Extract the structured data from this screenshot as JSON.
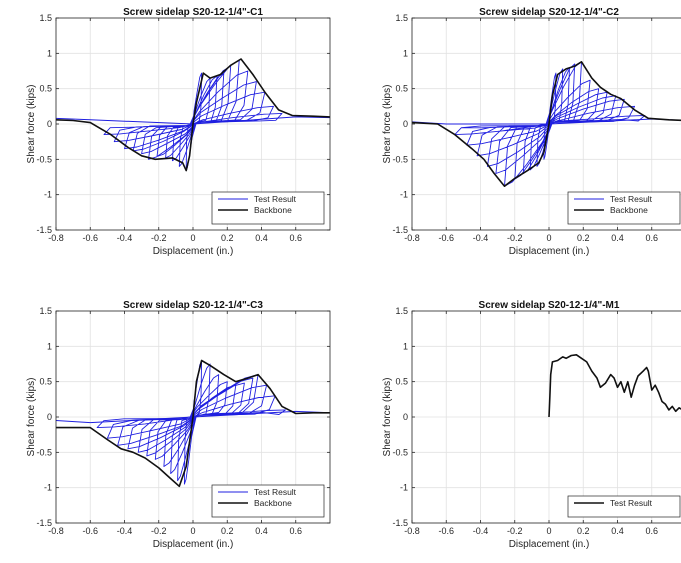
{
  "chart_data": [
    {
      "type": "line",
      "title": "Screw sidelap S20-12-1/4\"-C1",
      "xlabel": "Displacement (in.)",
      "ylabel": "Shear force (kips)",
      "xlim": [
        -0.8,
        0.8
      ],
      "ylim": [
        -1.5,
        1.5
      ],
      "xticks": [
        -0.8,
        -0.6,
        -0.4,
        -0.2,
        0,
        0.2,
        0.4,
        0.6
      ],
      "xtick_labels": [
        "-0.8",
        "-0.6",
        "-0.4",
        "-0.2",
        "0",
        "0.2",
        "0.4",
        "0.6"
      ],
      "yticks": [
        -1.5,
        -1,
        -0.5,
        0,
        0.5,
        1,
        1.5
      ],
      "ytick_labels": [
        "-1.5",
        "-1",
        "-0.5",
        "0",
        "0.5",
        "1",
        "1.5"
      ],
      "grid": true,
      "legend_position": "bottom-right",
      "series": [
        {
          "name": "Test Result",
          "color": "#1f1fe0",
          "kind": "hysteresis",
          "pos_peaks": [
            [
              0.05,
              0.72
            ],
            [
              0.1,
              0.65
            ],
            [
              0.14,
              0.68
            ],
            [
              0.18,
              0.72
            ],
            [
              0.22,
              0.82
            ],
            [
              0.27,
              0.9
            ],
            [
              0.32,
              0.75
            ],
            [
              0.37,
              0.6
            ],
            [
              0.42,
              0.45
            ],
            [
              0.47,
              0.25
            ],
            [
              0.52,
              0.15
            ]
          ],
          "neg_peaks": [
            [
              -0.04,
              -0.66
            ],
            [
              -0.08,
              -0.6
            ],
            [
              -0.12,
              -0.52
            ],
            [
              -0.16,
              -0.48
            ],
            [
              -0.21,
              -0.46
            ],
            [
              -0.26,
              -0.5
            ],
            [
              -0.3,
              -0.42
            ],
            [
              -0.35,
              -0.38
            ],
            [
              -0.4,
              -0.35
            ],
            [
              -0.46,
              -0.25
            ],
            [
              -0.52,
              -0.15
            ]
          ],
          "tail": [
            [
              -0.8,
              0.08
            ],
            [
              -0.6,
              0.06
            ],
            [
              0.6,
              0.1
            ],
            [
              0.8,
              0.09
            ]
          ]
        },
        {
          "name": "Backbone",
          "color": "#111111",
          "kind": "line",
          "points": [
            [
              -0.8,
              0.06
            ],
            [
              -0.7,
              0.05
            ],
            [
              -0.6,
              0.02
            ],
            [
              -0.48,
              -0.15
            ],
            [
              -0.38,
              -0.33
            ],
            [
              -0.3,
              -0.45
            ],
            [
              -0.22,
              -0.5
            ],
            [
              -0.12,
              -0.48
            ],
            [
              -0.06,
              -0.55
            ],
            [
              -0.04,
              -0.66
            ],
            [
              -0.02,
              -0.45
            ],
            [
              0.0,
              0.0
            ],
            [
              0.02,
              0.3
            ],
            [
              0.06,
              0.72
            ],
            [
              0.1,
              0.65
            ],
            [
              0.16,
              0.7
            ],
            [
              0.22,
              0.83
            ],
            [
              0.28,
              0.92
            ],
            [
              0.35,
              0.7
            ],
            [
              0.42,
              0.45
            ],
            [
              0.5,
              0.2
            ],
            [
              0.58,
              0.12
            ],
            [
              0.7,
              0.11
            ],
            [
              0.8,
              0.1
            ]
          ]
        }
      ]
    },
    {
      "type": "line",
      "title": "Screw sidelap S20-12-1/4\"-C2",
      "xlabel": "Displacement (in.)",
      "ylabel": "Shear force (kips)",
      "xlim": [
        -0.8,
        0.8
      ],
      "ylim": [
        -1.5,
        1.5
      ],
      "xticks": [
        -0.8,
        -0.6,
        -0.4,
        -0.2,
        0,
        0.2,
        0.4,
        0.6
      ],
      "xtick_labels": [
        "-0.8",
        "-0.6",
        "-0.4",
        "-0.2",
        "0",
        "0.2",
        "0.4",
        "0.6"
      ],
      "yticks": [
        -1.5,
        -1,
        -0.5,
        0,
        0.5,
        1,
        1.5
      ],
      "ytick_labels": [
        "-1.5",
        "-1",
        "-0.5",
        "0",
        "0.5",
        "1",
        "1.5"
      ],
      "grid": true,
      "legend_position": "bottom-right",
      "series": [
        {
          "name": "Test Result",
          "color": "#1f1fe0",
          "kind": "hysteresis",
          "pos_peaks": [
            [
              0.04,
              0.72
            ],
            [
              0.08,
              0.78
            ],
            [
              0.12,
              0.8
            ],
            [
              0.15,
              0.85
            ],
            [
              0.19,
              0.88
            ],
            [
              0.24,
              0.62
            ],
            [
              0.29,
              0.5
            ],
            [
              0.34,
              0.45
            ],
            [
              0.39,
              0.4
            ],
            [
              0.44,
              0.35
            ],
            [
              0.5,
              0.25
            ],
            [
              0.56,
              0.12
            ]
          ],
          "neg_peaks": [
            [
              -0.03,
              -0.5
            ],
            [
              -0.07,
              -0.6
            ],
            [
              -0.11,
              -0.65
            ],
            [
              -0.15,
              -0.7
            ],
            [
              -0.2,
              -0.78
            ],
            [
              -0.26,
              -0.88
            ],
            [
              -0.31,
              -0.7
            ],
            [
              -0.36,
              -0.6
            ],
            [
              -0.42,
              -0.45
            ],
            [
              -0.48,
              -0.3
            ],
            [
              -0.55,
              -0.15
            ]
          ],
          "tail": [
            [
              -0.8,
              0.03
            ],
            [
              -0.6,
              0.0
            ],
            [
              0.6,
              0.07
            ],
            [
              0.8,
              0.05
            ]
          ]
        },
        {
          "name": "Backbone",
          "color": "#111111",
          "kind": "line",
          "points": [
            [
              -0.8,
              0.02
            ],
            [
              -0.65,
              0.0
            ],
            [
              -0.55,
              -0.15
            ],
            [
              -0.45,
              -0.35
            ],
            [
              -0.38,
              -0.5
            ],
            [
              -0.32,
              -0.7
            ],
            [
              -0.26,
              -0.88
            ],
            [
              -0.2,
              -0.77
            ],
            [
              -0.12,
              -0.65
            ],
            [
              -0.06,
              -0.55
            ],
            [
              -0.03,
              -0.4
            ],
            [
              0.0,
              0.0
            ],
            [
              0.02,
              0.4
            ],
            [
              0.05,
              0.7
            ],
            [
              0.1,
              0.78
            ],
            [
              0.15,
              0.82
            ],
            [
              0.19,
              0.88
            ],
            [
              0.25,
              0.65
            ],
            [
              0.3,
              0.52
            ],
            [
              0.36,
              0.42
            ],
            [
              0.42,
              0.36
            ],
            [
              0.5,
              0.2
            ],
            [
              0.58,
              0.08
            ],
            [
              0.7,
              0.06
            ],
            [
              0.8,
              0.05
            ]
          ]
        }
      ]
    },
    {
      "type": "line",
      "title": "Screw sidelap S20-12-1/4\"-C3",
      "xlabel": "Displacement (in.)",
      "ylabel": "Shear force (kips)",
      "xlim": [
        -0.8,
        0.8
      ],
      "ylim": [
        -1.5,
        1.5
      ],
      "xticks": [
        -0.8,
        -0.6,
        -0.4,
        -0.2,
        0,
        0.2,
        0.4,
        0.6
      ],
      "xtick_labels": [
        "-0.8",
        "-0.6",
        "-0.4",
        "-0.2",
        "0",
        "0.2",
        "0.4",
        "0.6"
      ],
      "yticks": [
        -1.5,
        -1,
        -0.5,
        0,
        0.5,
        1,
        1.5
      ],
      "ytick_labels": [
        "-1.5",
        "-1",
        "-0.5",
        "0",
        "0.5",
        "1",
        "1.5"
      ],
      "grid": true,
      "legend_position": "bottom-right",
      "series": [
        {
          "name": "Test Result",
          "color": "#1f1fe0",
          "kind": "hysteresis",
          "pos_peaks": [
            [
              0.05,
              0.8
            ],
            [
              0.1,
              0.75
            ],
            [
              0.15,
              0.6
            ],
            [
              0.2,
              0.5
            ],
            [
              0.25,
              0.45
            ],
            [
              0.3,
              0.48
            ],
            [
              0.35,
              0.55
            ],
            [
              0.38,
              0.6
            ],
            [
              0.43,
              0.45
            ],
            [
              0.48,
              0.3
            ],
            [
              0.54,
              0.1
            ]
          ],
          "neg_peaks": [
            [
              -0.05,
              -0.95
            ],
            [
              -0.09,
              -0.9
            ],
            [
              -0.13,
              -0.8
            ],
            [
              -0.17,
              -0.7
            ],
            [
              -0.22,
              -0.6
            ],
            [
              -0.27,
              -0.55
            ],
            [
              -0.32,
              -0.5
            ],
            [
              -0.38,
              -0.45
            ],
            [
              -0.44,
              -0.4
            ],
            [
              -0.5,
              -0.3
            ],
            [
              -0.56,
              -0.15
            ]
          ],
          "tail": [
            [
              -0.8,
              -0.05
            ],
            [
              -0.6,
              -0.08
            ],
            [
              0.6,
              0.08
            ],
            [
              0.8,
              0.06
            ]
          ]
        },
        {
          "name": "Backbone",
          "color": "#111111",
          "kind": "line",
          "points": [
            [
              -0.8,
              -0.15
            ],
            [
              -0.7,
              -0.15
            ],
            [
              -0.6,
              -0.15
            ],
            [
              -0.5,
              -0.32
            ],
            [
              -0.42,
              -0.45
            ],
            [
              -0.35,
              -0.5
            ],
            [
              -0.28,
              -0.58
            ],
            [
              -0.2,
              -0.72
            ],
            [
              -0.14,
              -0.85
            ],
            [
              -0.08,
              -0.98
            ],
            [
              -0.04,
              -0.7
            ],
            [
              0.0,
              0.0
            ],
            [
              0.02,
              0.5
            ],
            [
              0.05,
              0.8
            ],
            [
              0.1,
              0.73
            ],
            [
              0.18,
              0.6
            ],
            [
              0.25,
              0.5
            ],
            [
              0.32,
              0.55
            ],
            [
              0.38,
              0.6
            ],
            [
              0.45,
              0.4
            ],
            [
              0.52,
              0.15
            ],
            [
              0.6,
              0.05
            ],
            [
              0.7,
              0.06
            ],
            [
              0.8,
              0.06
            ]
          ]
        }
      ]
    },
    {
      "type": "line",
      "title": "Screw sidelap S20-12-1/4\"-M1",
      "xlabel": "Displacement (in.)",
      "ylabel": "Shear force (kips)",
      "xlim": [
        -0.8,
        0.8
      ],
      "ylim": [
        -1.5,
        1.5
      ],
      "xticks": [
        -0.8,
        -0.6,
        -0.4,
        -0.2,
        0,
        0.2,
        0.4,
        0.6
      ],
      "xtick_labels": [
        "-0.8",
        "-0.6",
        "-0.4",
        "-0.2",
        "0",
        "0.2",
        "0.4",
        "0.6"
      ],
      "yticks": [
        -1.5,
        -1,
        -0.5,
        0,
        0.5,
        1,
        1.5
      ],
      "ytick_labels": [
        "-1.5",
        "-1",
        "-0.5",
        "0",
        "0.5",
        "1",
        "1.5"
      ],
      "grid": true,
      "legend_position": "bottom-right",
      "series": [
        {
          "name": "Test Result",
          "color": "#111111",
          "kind": "line",
          "points": [
            [
              0.0,
              0.0
            ],
            [
              0.005,
              0.3
            ],
            [
              0.01,
              0.6
            ],
            [
              0.02,
              0.78
            ],
            [
              0.05,
              0.8
            ],
            [
              0.08,
              0.85
            ],
            [
              0.1,
              0.83
            ],
            [
              0.13,
              0.87
            ],
            [
              0.16,
              0.88
            ],
            [
              0.19,
              0.83
            ],
            [
              0.22,
              0.78
            ],
            [
              0.25,
              0.65
            ],
            [
              0.28,
              0.55
            ],
            [
              0.3,
              0.42
            ],
            [
              0.33,
              0.48
            ],
            [
              0.36,
              0.6
            ],
            [
              0.38,
              0.55
            ],
            [
              0.4,
              0.42
            ],
            [
              0.42,
              0.5
            ],
            [
              0.44,
              0.35
            ],
            [
              0.46,
              0.5
            ],
            [
              0.48,
              0.28
            ],
            [
              0.5,
              0.45
            ],
            [
              0.52,
              0.58
            ],
            [
              0.55,
              0.65
            ],
            [
              0.57,
              0.7
            ],
            [
              0.58,
              0.65
            ],
            [
              0.6,
              0.38
            ],
            [
              0.62,
              0.45
            ],
            [
              0.64,
              0.35
            ],
            [
              0.66,
              0.22
            ],
            [
              0.68,
              0.18
            ],
            [
              0.7,
              0.1
            ],
            [
              0.72,
              0.15
            ],
            [
              0.74,
              0.08
            ],
            [
              0.76,
              0.13
            ],
            [
              0.78,
              0.1
            ]
          ]
        }
      ]
    }
  ]
}
